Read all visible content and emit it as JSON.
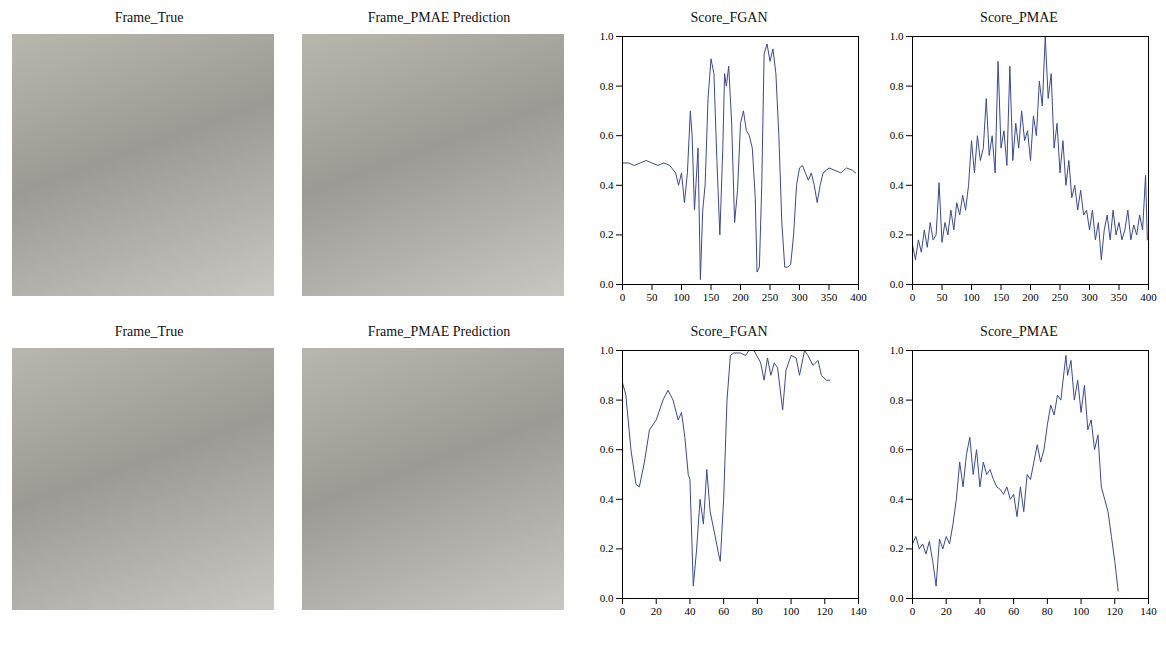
{
  "chart_data": [
    {
      "type": "image",
      "title": "Frame_True"
    },
    {
      "type": "image",
      "title": "Frame_PMAE Prediction"
    },
    {
      "type": "line",
      "title": "Score_FGAN",
      "color": "#3a4a8e",
      "grid": false,
      "xlim": [
        0,
        400
      ],
      "xticks": [
        0,
        50,
        100,
        150,
        200,
        250,
        300,
        350,
        400
      ],
      "ylim": [
        0,
        1
      ],
      "yticks": [
        {
          "value": 0,
          "label": "0.0"
        },
        {
          "value": 0.2,
          "label": "0.2"
        },
        {
          "value": 0.4,
          "label": "0.4"
        },
        {
          "value": 0.6,
          "label": "0.6"
        },
        {
          "value": 0.8,
          "label": "0.8"
        },
        {
          "value": 1,
          "label": "1.0"
        }
      ],
      "x": [
        0,
        10,
        20,
        30,
        40,
        50,
        60,
        70,
        80,
        90,
        95,
        100,
        105,
        110,
        115,
        118,
        122,
        128,
        132,
        136,
        140,
        145,
        150,
        155,
        160,
        165,
        170,
        173,
        176,
        180,
        185,
        190,
        195,
        200,
        205,
        210,
        215,
        220,
        225,
        228,
        232,
        236,
        240,
        245,
        250,
        255,
        260,
        265,
        270,
        275,
        280,
        285,
        290,
        295,
        300,
        305,
        310,
        315,
        320,
        325,
        330,
        335,
        340,
        350,
        360,
        370,
        380,
        390,
        395
      ],
      "values": [
        0.49,
        0.49,
        0.48,
        0.49,
        0.5,
        0.49,
        0.48,
        0.49,
        0.48,
        0.45,
        0.4,
        0.45,
        0.33,
        0.45,
        0.7,
        0.6,
        0.3,
        0.55,
        0.02,
        0.3,
        0.4,
        0.75,
        0.91,
        0.85,
        0.5,
        0.2,
        0.55,
        0.85,
        0.8,
        0.88,
        0.65,
        0.25,
        0.38,
        0.65,
        0.7,
        0.62,
        0.6,
        0.55,
        0.35,
        0.05,
        0.07,
        0.4,
        0.93,
        0.97,
        0.9,
        0.95,
        0.85,
        0.6,
        0.25,
        0.07,
        0.07,
        0.08,
        0.2,
        0.4,
        0.47,
        0.48,
        0.45,
        0.42,
        0.45,
        0.4,
        0.33,
        0.4,
        0.45,
        0.47,
        0.46,
        0.45,
        0.47,
        0.46,
        0.45
      ]
    },
    {
      "type": "line",
      "title": "Score_PMAE",
      "color": "#3a4a8e",
      "grid": false,
      "xlim": [
        0,
        400
      ],
      "xticks": [
        0,
        50,
        100,
        150,
        200,
        250,
        300,
        350,
        400
      ],
      "ylim": [
        0,
        1
      ],
      "yticks": [
        {
          "value": 0,
          "label": "0.0"
        },
        {
          "value": 0.2,
          "label": "0.2"
        },
        {
          "value": 0.4,
          "label": "0.4"
        },
        {
          "value": 0.6,
          "label": "0.6"
        },
        {
          "value": 0.8,
          "label": "0.8"
        },
        {
          "value": 1,
          "label": "1.0"
        }
      ],
      "x": [
        0,
        5,
        10,
        15,
        20,
        25,
        30,
        35,
        40,
        45,
        50,
        55,
        60,
        65,
        70,
        75,
        80,
        85,
        90,
        95,
        100,
        105,
        110,
        115,
        120,
        125,
        130,
        135,
        140,
        145,
        150,
        155,
        160,
        165,
        170,
        175,
        180,
        185,
        190,
        195,
        200,
        205,
        210,
        215,
        220,
        225,
        230,
        235,
        240,
        245,
        250,
        255,
        260,
        265,
        270,
        275,
        280,
        285,
        290,
        295,
        300,
        305,
        310,
        315,
        320,
        325,
        330,
        335,
        340,
        345,
        350,
        355,
        360,
        365,
        370,
        375,
        380,
        385,
        390,
        395,
        398
      ],
      "values": [
        0.16,
        0.1,
        0.18,
        0.13,
        0.22,
        0.15,
        0.25,
        0.18,
        0.2,
        0.41,
        0.17,
        0.25,
        0.2,
        0.3,
        0.22,
        0.33,
        0.28,
        0.36,
        0.3,
        0.4,
        0.58,
        0.45,
        0.6,
        0.5,
        0.55,
        0.75,
        0.52,
        0.6,
        0.45,
        0.9,
        0.55,
        0.62,
        0.48,
        0.88,
        0.5,
        0.65,
        0.55,
        0.7,
        0.58,
        0.62,
        0.5,
        0.68,
        0.6,
        0.82,
        0.72,
        1.0,
        0.75,
        0.85,
        0.55,
        0.65,
        0.45,
        0.58,
        0.4,
        0.5,
        0.35,
        0.4,
        0.3,
        0.38,
        0.28,
        0.3,
        0.22,
        0.3,
        0.18,
        0.25,
        0.1,
        0.22,
        0.28,
        0.18,
        0.3,
        0.2,
        0.25,
        0.18,
        0.22,
        0.3,
        0.18,
        0.24,
        0.2,
        0.28,
        0.22,
        0.44,
        0.18
      ]
    },
    {
      "type": "image",
      "title": "Frame_True"
    },
    {
      "type": "image",
      "title": "Frame_PMAE Prediction"
    },
    {
      "type": "line",
      "title": "Score_FGAN",
      "color": "#3a4a8e",
      "grid": false,
      "xlim": [
        0,
        140
      ],
      "xticks": [
        0,
        20,
        40,
        60,
        80,
        100,
        120,
        140
      ],
      "ylim": [
        0,
        1
      ],
      "yticks": [
        {
          "value": 0,
          "label": "0.0"
        },
        {
          "value": 0.2,
          "label": "0.2"
        },
        {
          "value": 0.4,
          "label": "0.4"
        },
        {
          "value": 0.6,
          "label": "0.6"
        },
        {
          "value": 0.8,
          "label": "0.8"
        },
        {
          "value": 1,
          "label": "1.0"
        }
      ],
      "x": [
        0,
        2,
        5,
        8,
        10,
        13,
        16,
        20,
        24,
        27,
        30,
        33,
        35,
        37,
        39,
        40,
        42,
        44,
        46,
        48,
        50,
        52,
        55,
        57,
        58,
        60,
        62,
        64,
        66,
        70,
        73,
        75,
        78,
        82,
        84,
        86,
        88,
        90,
        92,
        95,
        97,
        100,
        103,
        105,
        108,
        110,
        113,
        116,
        118,
        121,
        123
      ],
      "values": [
        0.87,
        0.82,
        0.6,
        0.46,
        0.45,
        0.55,
        0.68,
        0.72,
        0.8,
        0.84,
        0.8,
        0.72,
        0.75,
        0.65,
        0.5,
        0.48,
        0.05,
        0.2,
        0.4,
        0.3,
        0.52,
        0.35,
        0.25,
        0.18,
        0.15,
        0.4,
        0.8,
        0.98,
        0.99,
        0.99,
        0.98,
        1.0,
        1.0,
        0.95,
        0.88,
        0.97,
        0.9,
        0.95,
        0.93,
        0.76,
        0.92,
        0.98,
        0.97,
        0.9,
        1.0,
        0.98,
        0.94,
        0.96,
        0.9,
        0.88,
        0.88
      ]
    },
    {
      "type": "line",
      "title": "Score_PMAE",
      "color": "#3a4a8e",
      "grid": false,
      "xlim": [
        0,
        140
      ],
      "xticks": [
        0,
        20,
        40,
        60,
        80,
        100,
        120,
        140
      ],
      "ylim": [
        0,
        1
      ],
      "yticks": [
        {
          "value": 0,
          "label": "0.0"
        },
        {
          "value": 0.2,
          "label": "0.2"
        },
        {
          "value": 0.4,
          "label": "0.4"
        },
        {
          "value": 0.6,
          "label": "0.6"
        },
        {
          "value": 0.8,
          "label": "0.8"
        },
        {
          "value": 1,
          "label": "1.0"
        }
      ],
      "x": [
        0,
        2,
        4,
        6,
        8,
        10,
        12,
        14,
        16,
        18,
        20,
        22,
        24,
        26,
        28,
        30,
        32,
        34,
        36,
        38,
        40,
        42,
        44,
        46,
        48,
        50,
        52,
        54,
        56,
        58,
        60,
        62,
        64,
        66,
        68,
        70,
        72,
        74,
        76,
        78,
        80,
        82,
        84,
        86,
        88,
        90,
        91,
        92,
        94,
        96,
        98,
        100,
        102,
        104,
        106,
        108,
        110,
        112,
        114,
        116,
        118,
        120,
        122
      ],
      "values": [
        0.22,
        0.25,
        0.2,
        0.22,
        0.18,
        0.23,
        0.15,
        0.05,
        0.24,
        0.2,
        0.25,
        0.22,
        0.3,
        0.4,
        0.55,
        0.45,
        0.58,
        0.65,
        0.5,
        0.6,
        0.45,
        0.55,
        0.5,
        0.52,
        0.48,
        0.45,
        0.44,
        0.42,
        0.45,
        0.4,
        0.42,
        0.33,
        0.45,
        0.35,
        0.5,
        0.48,
        0.55,
        0.62,
        0.55,
        0.6,
        0.7,
        0.78,
        0.74,
        0.82,
        0.8,
        0.92,
        0.98,
        0.9,
        0.96,
        0.8,
        0.88,
        0.75,
        0.86,
        0.68,
        0.72,
        0.6,
        0.66,
        0.45,
        0.4,
        0.35,
        0.25,
        0.15,
        0.03
      ]
    }
  ]
}
